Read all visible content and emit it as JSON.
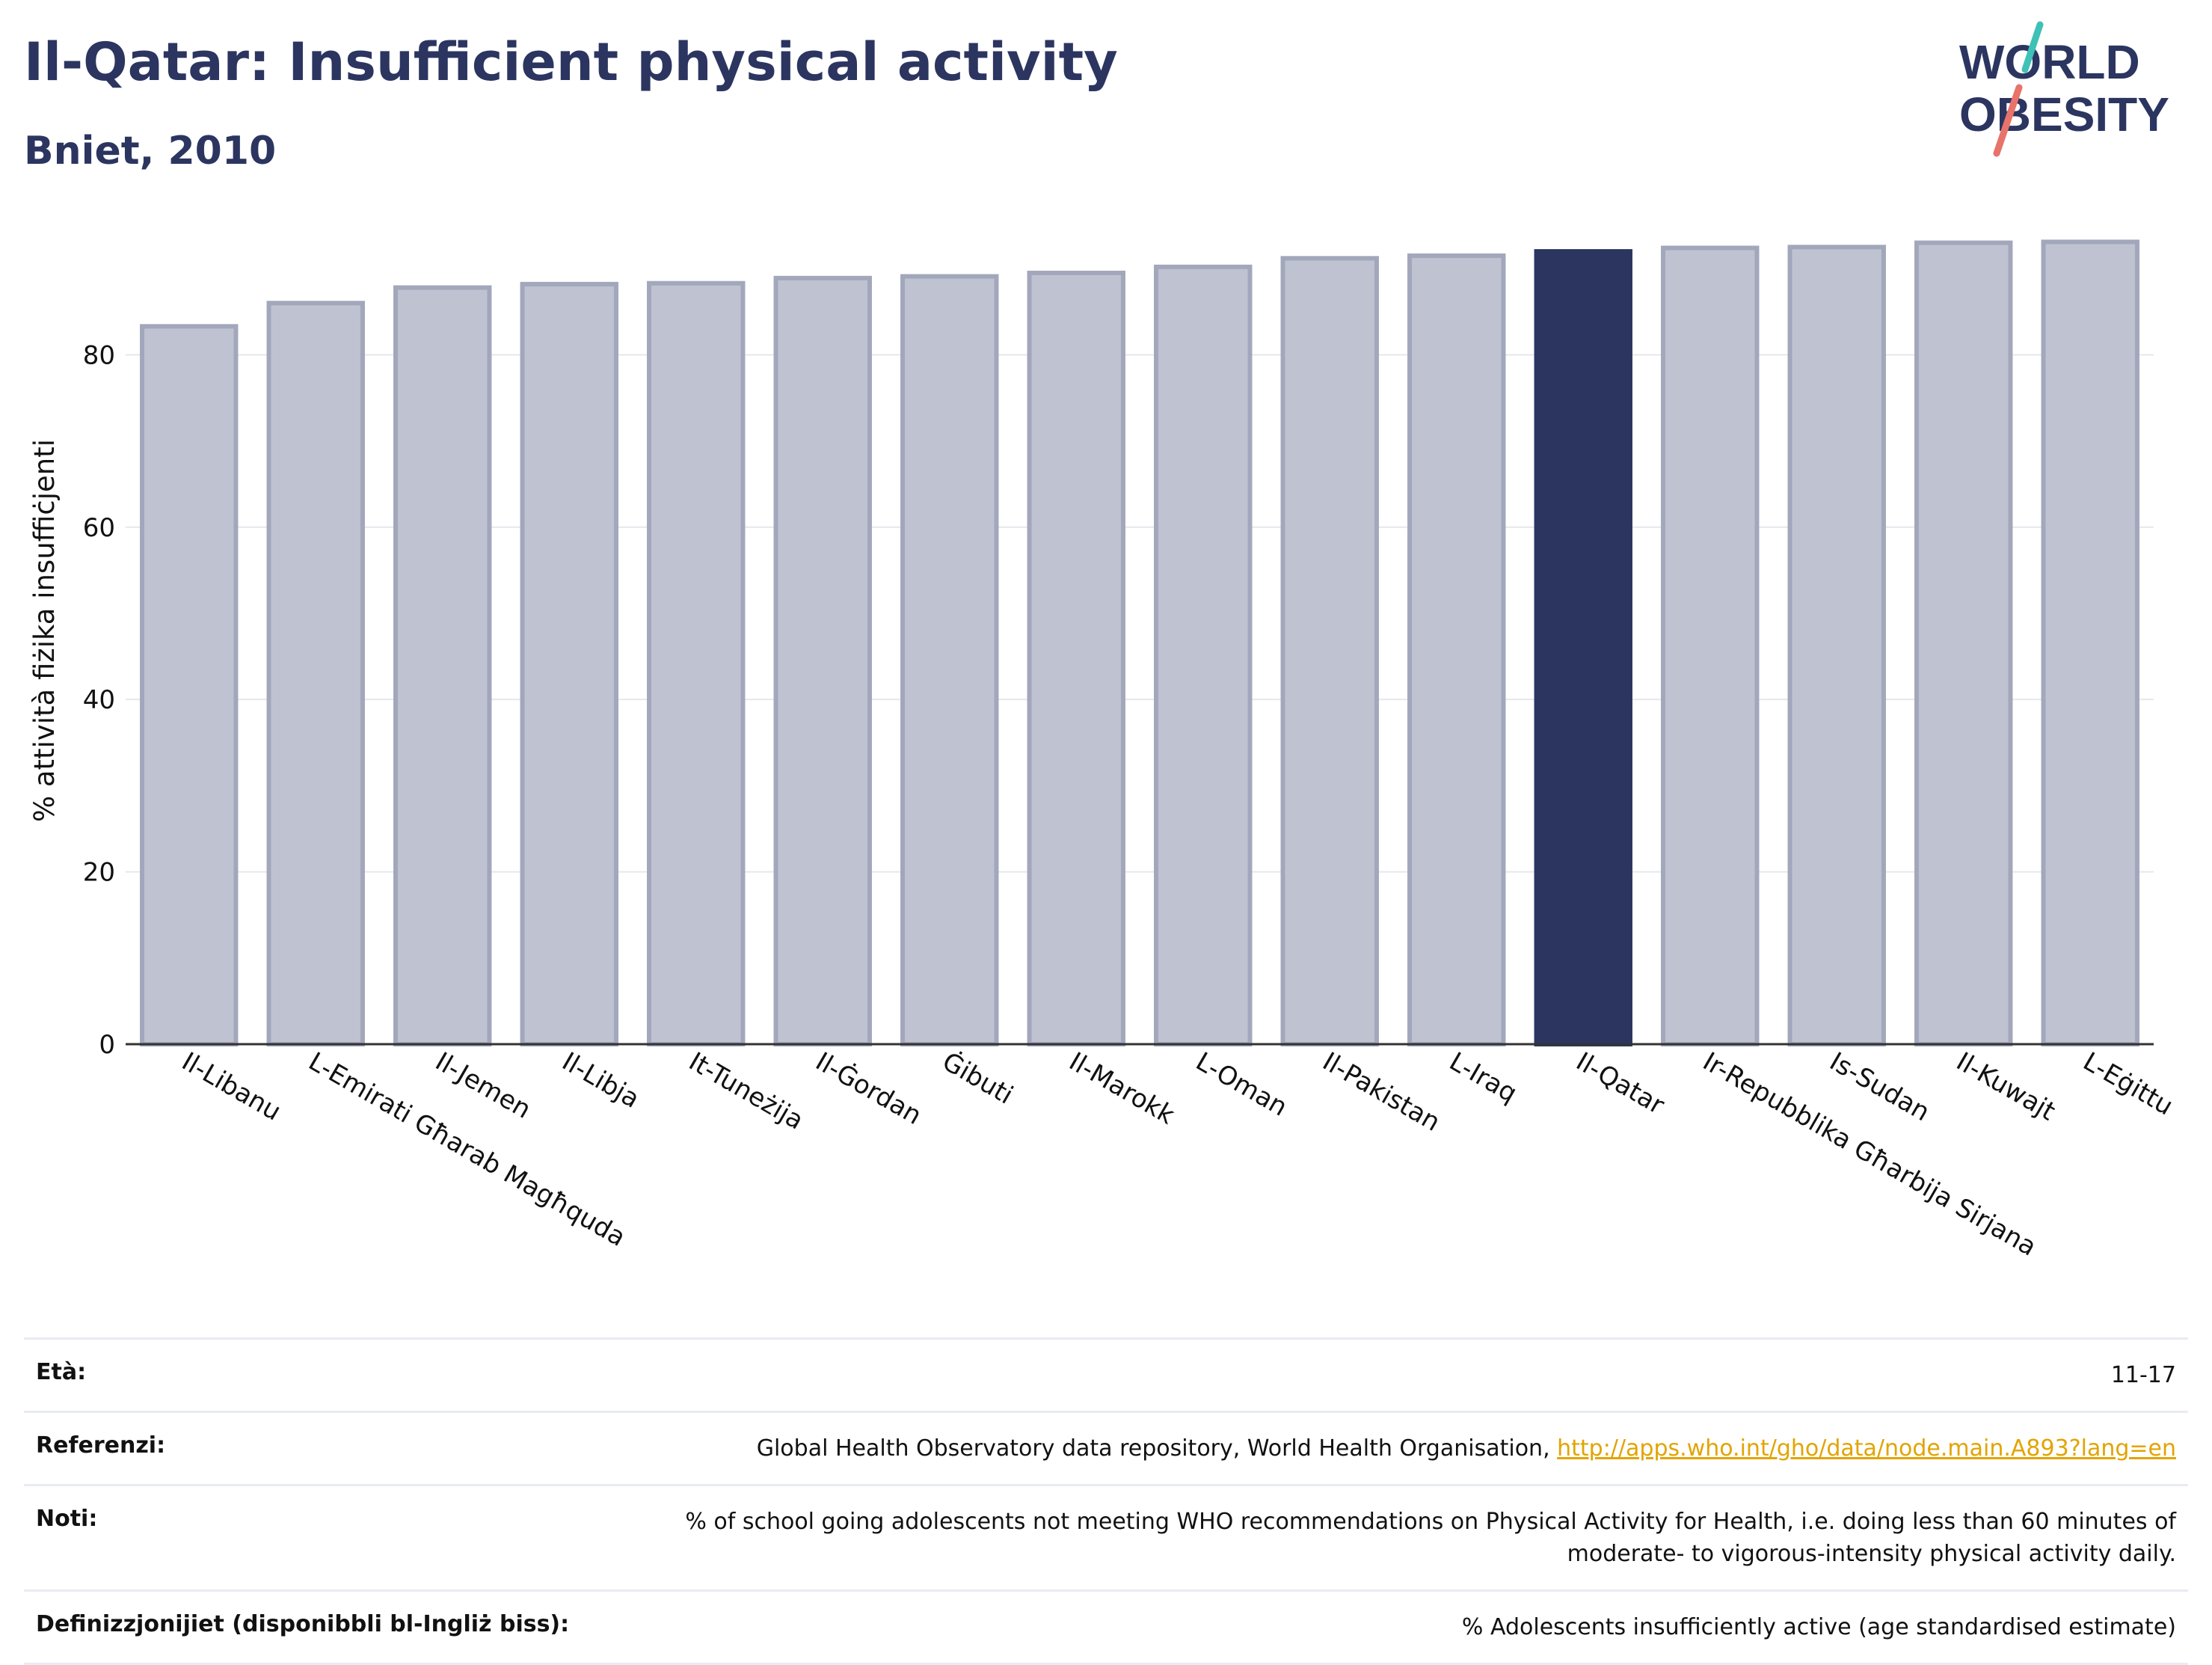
{
  "header": {
    "title": "Il-Qatar: Insufficient physical activity",
    "subtitle": "Bniet, 2010"
  },
  "logo": {
    "line1": "WORLD",
    "line2": "OBESITY"
  },
  "chart_data": {
    "type": "bar",
    "ylabel": "% attività fiżika insuffiċjenti",
    "xlabel": "",
    "ylim": [
      0,
      96
    ],
    "yticks": [
      0,
      20,
      40,
      60,
      80
    ],
    "grid": true,
    "highlight": "Il-Qatar",
    "categories": [
      "Il-Libanu",
      "L-Emirati Għarab Magħquda",
      "Il-Jemen",
      "Il-Libja",
      "It-Tuneżija",
      "Il-Ġordan",
      "Ġibuti",
      "Il-Marokk",
      "L-Oman",
      "Il-Pakistan",
      "L-Iraq",
      "Il-Qatar",
      "Ir-Repubblika Għarbija Sirjana",
      "Is-Sudan",
      "Il-Kuwajt",
      "L-Eġittu"
    ],
    "values": [
      83.3,
      86.0,
      87.8,
      88.2,
      88.3,
      88.9,
      89.1,
      89.5,
      90.2,
      91.2,
      91.5,
      92.0,
      92.4,
      92.5,
      93.0,
      93.1
    ]
  },
  "colors": {
    "title": "#2b3560",
    "bar": "#bfc3d1",
    "bar_stroke": "#a2a7bb",
    "highlight": "#2b3560",
    "link": "#e2a400",
    "logo_teal": "#3ec1b6",
    "logo_coral": "#e8736a"
  },
  "info": {
    "age_label": "Età:",
    "age_value": "11-17",
    "refs_label": "Referenzi:",
    "refs_text": "Global Health Observatory data repository, World Health Organisation, ",
    "refs_link": "http://apps.who.int/gho/data/node.main.A893?lang=en",
    "notes_label": "Noti:",
    "notes_value": "% of school going adolescents not meeting WHO recommendations on Physical Activity for Health, i.e. doing less than 60 minutes of moderate- to vigorous-intensity physical activity daily.",
    "def_label": "Definizzjonijiet (disponibbli bl-Ingliż biss):",
    "def_value": "% Adolescents insufficiently active (age standardised estimate)"
  }
}
